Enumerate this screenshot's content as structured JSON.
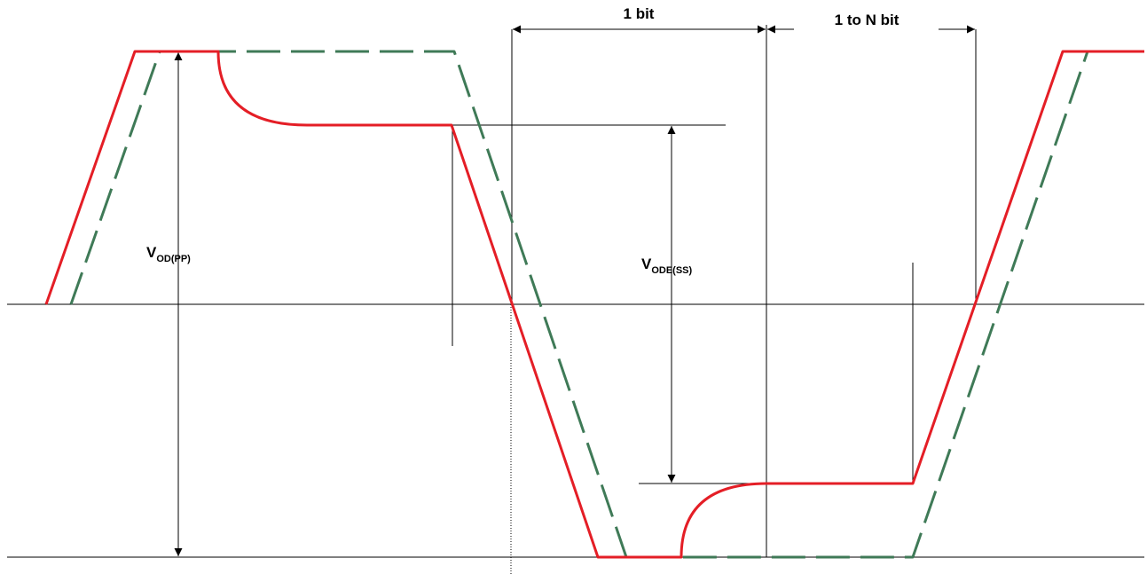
{
  "colors": {
    "waveform_solid": "#e41e26",
    "waveform_dashed": "#3f7a57",
    "reference_lines": "#000000",
    "background": "#ffffff"
  },
  "labels": {
    "one_bit": "1 bit",
    "one_to_n_bit": "1 to N bit",
    "vod_pp_main": "V",
    "vod_pp_sub": "OD(PP)",
    "vode_ss_main": "V",
    "vode_ss_sub": "ODE(SS)"
  }
}
